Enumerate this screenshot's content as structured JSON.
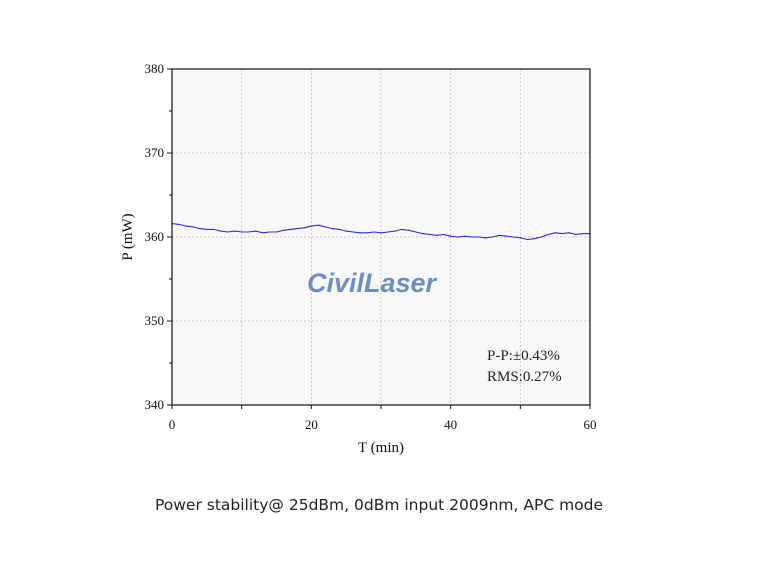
{
  "chart_data": {
    "type": "line",
    "xlabel": "T (min)",
    "ylabel": "P (mW)",
    "xlim": [
      0,
      60
    ],
    "ylim": [
      340,
      380
    ],
    "xticks": [
      0,
      20,
      40,
      60
    ],
    "yticks": [
      340,
      350,
      360,
      370,
      380
    ],
    "grid": true,
    "series": [
      {
        "color": "#2a2ad8",
        "x": [
          0,
          1,
          2,
          3,
          4,
          5,
          6,
          7,
          8,
          9,
          10,
          11,
          12,
          13,
          14,
          15,
          16,
          17,
          18,
          19,
          20,
          21,
          22,
          23,
          24,
          25,
          26,
          27,
          28,
          29,
          30,
          31,
          32,
          33,
          34,
          35,
          36,
          37,
          38,
          39,
          40,
          41,
          42,
          43,
          44,
          45,
          46,
          47,
          48,
          49,
          50,
          51,
          52,
          53,
          54,
          55,
          56,
          57,
          58,
          59,
          60
        ],
        "y": [
          361.6,
          361.5,
          361.3,
          361.2,
          361.0,
          360.9,
          360.9,
          360.7,
          360.6,
          360.7,
          360.6,
          360.6,
          360.7,
          360.5,
          360.6,
          360.6,
          360.8,
          360.9,
          361.0,
          361.1,
          361.3,
          361.4,
          361.2,
          361.0,
          360.9,
          360.7,
          360.6,
          360.5,
          360.5,
          360.6,
          360.5,
          360.6,
          360.7,
          360.9,
          360.8,
          360.6,
          360.4,
          360.3,
          360.2,
          360.3,
          360.1,
          360.0,
          360.1,
          360.0,
          360.0,
          359.9,
          360.0,
          360.2,
          360.1,
          360.0,
          359.9,
          359.7,
          359.8,
          360.0,
          360.3,
          360.5,
          360.4,
          360.5,
          360.3,
          360.4,
          360.4
        ]
      }
    ],
    "annotations": [
      "P-P:±0.43%",
      "RMS:0.27%"
    ]
  },
  "watermark": "CivilLaser",
  "caption": "Power stability@ 25dBm, 0dBm input 2009nm, APC mode"
}
